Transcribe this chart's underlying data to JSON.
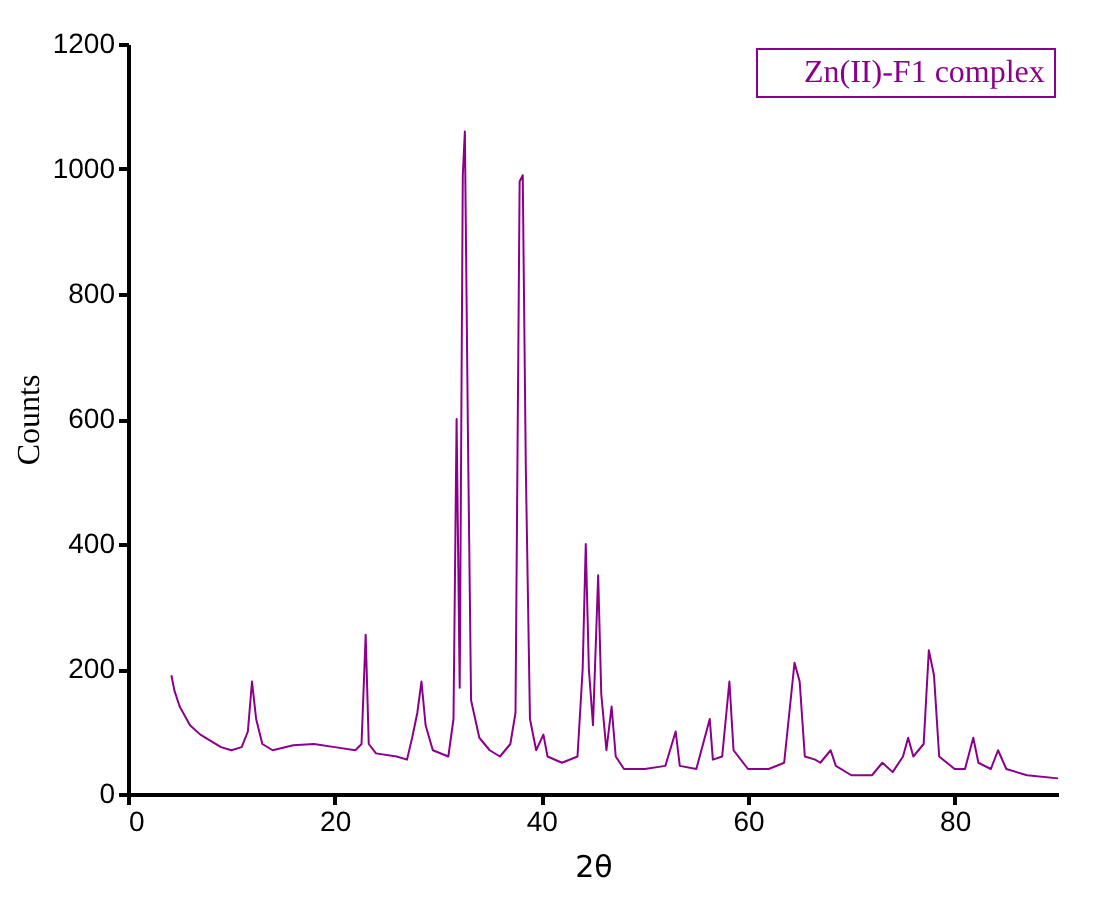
{
  "chart_data": {
    "type": "line",
    "xlabel": "2θ",
    "ylabel": "Counts",
    "xlim": [
      0,
      90
    ],
    "xticks": [
      0,
      20,
      40,
      60,
      80
    ],
    "ylim": [
      0,
      1200
    ],
    "yticks": [
      0,
      200,
      400,
      600,
      800,
      1000,
      1200
    ],
    "grid": false,
    "legend": "top right",
    "marker": "none",
    "line_style": "solid",
    "x": [
      4.2,
      4.5,
      5,
      6,
      7,
      8,
      9,
      10,
      11,
      11.6,
      12,
      12.4,
      13,
      14,
      16,
      18,
      20,
      22,
      22.6,
      23,
      23.3,
      24,
      26,
      27,
      27.5,
      28,
      28.4,
      28.8,
      29.5,
      31,
      31.5,
      31.8,
      32.1,
      32.4,
      32.6,
      32.9,
      33.2,
      34,
      35,
      36,
      37,
      37.5,
      37.9,
      38.2,
      38.5,
      38.9,
      39.5,
      40.2,
      40.6,
      42,
      43.5,
      44,
      44.3,
      44.6,
      45,
      45.5,
      45.8,
      46.3,
      46.8,
      47.2,
      48,
      50,
      52,
      53,
      53.4,
      55,
      56.3,
      56.6,
      57.5,
      58.2,
      58.6,
      60,
      62,
      63.5,
      64.5,
      65,
      65.5,
      66.5,
      67,
      68,
      68.5,
      70,
      72,
      73,
      74,
      75,
      75.5,
      76,
      77,
      77.5,
      78,
      78.5,
      80,
      81,
      81.8,
      82.3,
      83.5,
      84.2,
      85,
      87,
      90
    ],
    "series": [
      {
        "name": "Zn(II)-F1 complex",
        "color": "#8b008b",
        "values": [
          190,
          165,
          140,
          110,
          95,
          85,
          75,
          70,
          75,
          100,
          180,
          120,
          80,
          70,
          78,
          80,
          75,
          70,
          80,
          255,
          80,
          65,
          60,
          55,
          90,
          130,
          180,
          110,
          70,
          60,
          120,
          600,
          170,
          990,
          1060,
          570,
          150,
          90,
          70,
          60,
          80,
          130,
          980,
          990,
          520,
          120,
          70,
          95,
          60,
          50,
          60,
          200,
          400,
          200,
          110,
          350,
          160,
          70,
          140,
          60,
          40,
          40,
          45,
          100,
          45,
          40,
          120,
          55,
          60,
          180,
          70,
          40,
          40,
          50,
          210,
          180,
          60,
          55,
          50,
          70,
          45,
          30,
          30,
          50,
          35,
          60,
          90,
          60,
          80,
          230,
          190,
          60,
          40,
          40,
          90,
          50,
          40,
          70,
          40,
          30,
          25
        ]
      }
    ]
  }
}
